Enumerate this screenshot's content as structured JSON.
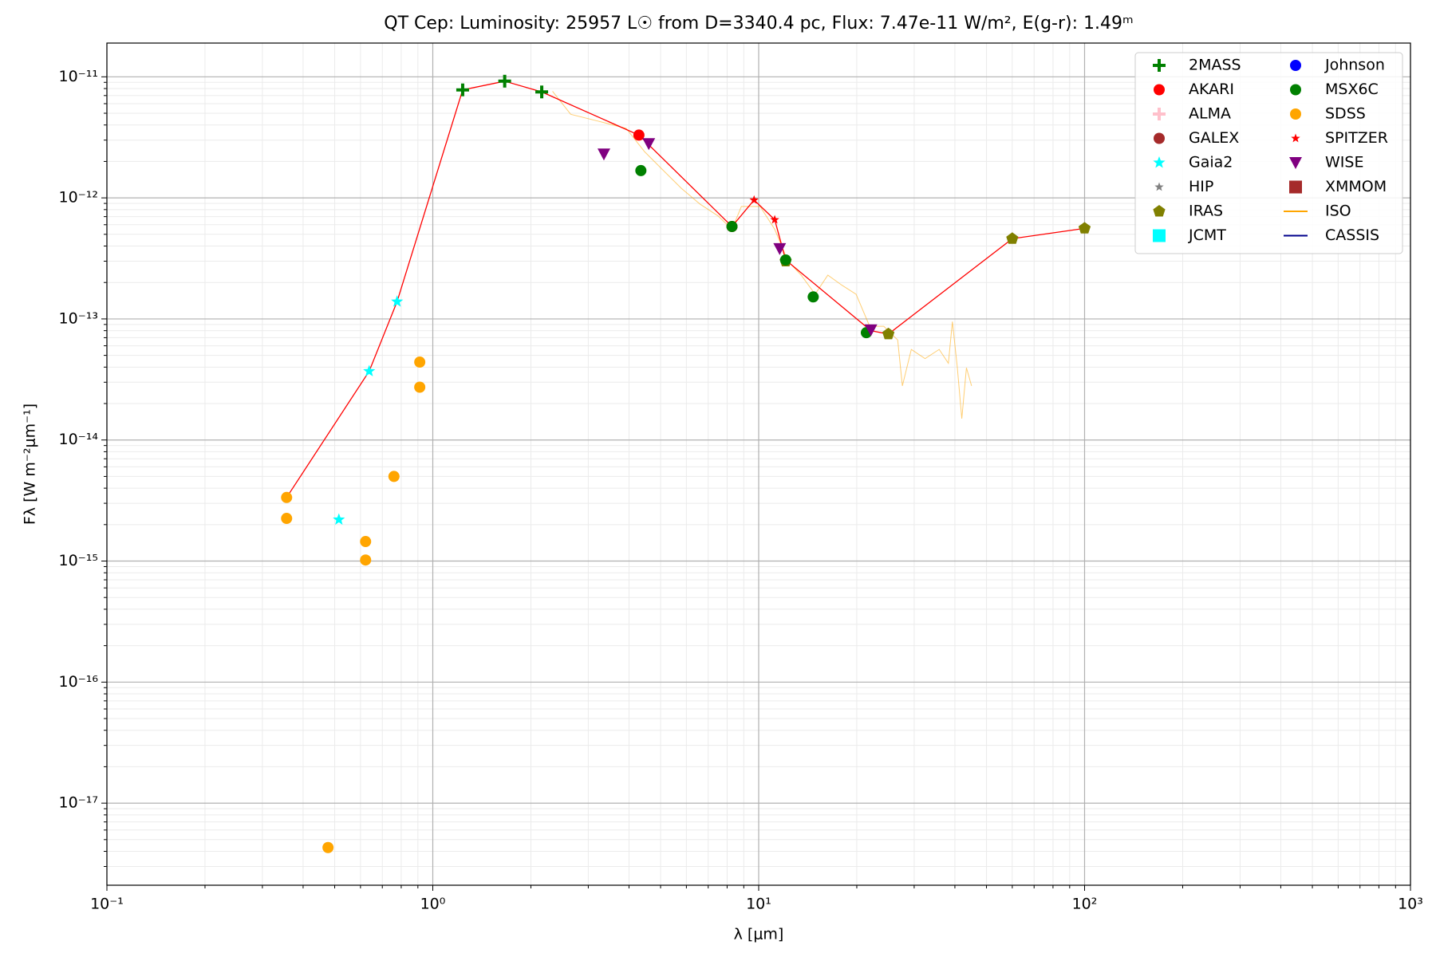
{
  "chart_data": {
    "type": "scatter",
    "title": "QT Cep:  Luminosity: 25957 L☉ from D=3340.4 pc, Flux: 7.47e-11 W/m², E(g-r): 1.49ᵐ",
    "x_label": "λ [μm]",
    "y_label": "Fλ [W m⁻²μm⁻¹]",
    "log_x": true,
    "log_y": true,
    "grid": true,
    "minor_grid": true,
    "legend": "upper right",
    "legend_columns": 2,
    "xlim": [
      0.1,
      1000
    ],
    "xticks": [
      {
        "value": 0.1,
        "label": "10⁻¹"
      },
      {
        "value": 1,
        "label": "10⁰"
      },
      {
        "value": 10,
        "label": "10¹"
      },
      {
        "value": 100,
        "label": "10²"
      },
      {
        "value": 1000,
        "label": "10³"
      }
    ],
    "ylim": [
      2.1e-18,
      1.9e-11
    ],
    "yticks": [
      {
        "value": 1e-17,
        "label": "10⁻¹⁷"
      },
      {
        "value": 1e-16,
        "label": "10⁻¹⁶"
      },
      {
        "value": 1e-15,
        "label": "10⁻¹⁵"
      },
      {
        "value": 1e-14,
        "label": "10⁻¹⁴"
      },
      {
        "value": 1e-13,
        "label": "10⁻¹³"
      },
      {
        "value": 1e-12,
        "label": "10⁻¹²"
      },
      {
        "value": 1e-11,
        "label": "10⁻¹¹"
      }
    ],
    "series": [
      {
        "name": "2MASS",
        "color": "#008000",
        "marker": "plus",
        "x": [
          1.235,
          1.662,
          2.159
        ],
        "values": [
          7.8e-12,
          9.2e-12,
          7.5e-12
        ]
      },
      {
        "name": "AKARI",
        "color": "#ff0000",
        "marker": "circle",
        "x": [
          4.29,
          8.28
        ],
        "values": [
          3.3e-12,
          5.8e-13
        ]
      },
      {
        "name": "ALMA",
        "color": "#ffc0cb",
        "marker": "plus",
        "x": [],
        "values": []
      },
      {
        "name": "GALEX",
        "color": "#a52a2a",
        "marker": "circle",
        "x": [],
        "values": []
      },
      {
        "name": "Gaia2",
        "color": "#00ffff",
        "marker": "star",
        "x": [
          0.515,
          0.638,
          0.777
        ],
        "values": [
          2.2e-15,
          3.7e-14,
          1.39e-13
        ]
      },
      {
        "name": "HIP",
        "color": "#808080",
        "marker": "smallstar",
        "x": [],
        "values": []
      },
      {
        "name": "IRAS",
        "color": "#808000",
        "marker": "pentagon",
        "x": [
          12.1,
          25,
          60,
          100
        ],
        "values": [
          3e-13,
          7.5e-14,
          4.6e-13,
          5.6e-13
        ]
      },
      {
        "name": "JCMT",
        "color": "#00ffff",
        "marker": "square",
        "x": [],
        "values": []
      },
      {
        "name": "Johnson",
        "color": "#0000ff",
        "marker": "circle",
        "x": [],
        "values": []
      },
      {
        "name": "MSX6C",
        "color": "#008000",
        "marker": "circle",
        "x": [
          4.35,
          8.28,
          12.1,
          14.7,
          21.4
        ],
        "values": [
          1.68e-12,
          5.8e-13,
          3.07e-13,
          1.52e-13,
          7.7e-14
        ]
      },
      {
        "name": "SDSS",
        "color": "#ffa500",
        "marker": "circle",
        "x": [
          0.356,
          0.356,
          0.477,
          0.622,
          0.622,
          0.76,
          0.912,
          0.912
        ],
        "values": [
          3.35e-15,
          2.25e-15,
          4.3e-18,
          1.45e-15,
          1.02e-15,
          5e-15,
          4.4e-14,
          2.73e-14
        ]
      },
      {
        "name": "SPITZER",
        "color": "#ff0000",
        "marker": "smallstar",
        "x": [
          9.68,
          11.2
        ],
        "values": [
          9.6e-13,
          6.6e-13
        ]
      },
      {
        "name": "WISE",
        "color": "#800080",
        "marker": "tridown",
        "x": [
          3.35,
          4.6,
          11.6,
          22.1
        ],
        "values": [
          2.3e-12,
          2.8e-12,
          3.8e-13,
          8.1e-14
        ]
      },
      {
        "name": "XMMOM",
        "color": "#a52a2a",
        "marker": "square",
        "x": [],
        "values": []
      },
      {
        "name": "ISO",
        "color": "#ffa500",
        "marker": "line",
        "x": [
          2.33,
          2.65,
          3.22,
          3.92,
          4.47,
          5.08,
          5.79,
          6.6,
          7.5,
          8.28,
          8.85,
          10.1,
          11.2,
          12.3,
          13.5,
          14.9,
          16.3,
          18,
          19.9,
          21.9,
          24.2,
          26.7,
          27.6,
          29.4,
          32.4,
          35.8,
          38.2,
          39.3,
          40.7,
          42,
          43.4,
          45
        ],
        "values": [
          7.6e-12,
          4.9e-12,
          4.3e-12,
          3.75e-12,
          2.4e-12,
          1.7e-12,
          1.2e-12,
          8.9e-13,
          7.1e-13,
          5.5e-13,
          8.5e-13,
          8.5e-13,
          5.5e-13,
          3e-13,
          2.3e-13,
          1.6e-13,
          2.3e-13,
          1.9e-13,
          1.6e-13,
          8.7e-14,
          8.7e-14,
          6.7e-14,
          2.8e-14,
          5.6e-14,
          4.7e-14,
          5.6e-14,
          4.3e-14,
          9.5e-14,
          3.95e-14,
          1.5e-14,
          3.95e-14,
          2.8e-14
        ]
      },
      {
        "name": "CASSIS",
        "color": "#00008b",
        "marker": "line",
        "x": [],
        "values": []
      }
    ],
    "sed_line": {
      "color": "#ff0000",
      "x": [
        0.356,
        0.638,
        0.777,
        1.235,
        1.662,
        2.159,
        4.29,
        8.28,
        9.68,
        11.2,
        12.1,
        22.1,
        25,
        60,
        100
      ],
      "values": [
        3.35e-15,
        3.7e-14,
        1.39e-13,
        7.8e-12,
        9.2e-12,
        7.5e-12,
        3.3e-12,
        5.8e-13,
        9.6e-13,
        6.6e-13,
        3.07e-13,
        8e-14,
        7.5e-14,
        4.6e-13,
        5.6e-13
      ]
    }
  }
}
